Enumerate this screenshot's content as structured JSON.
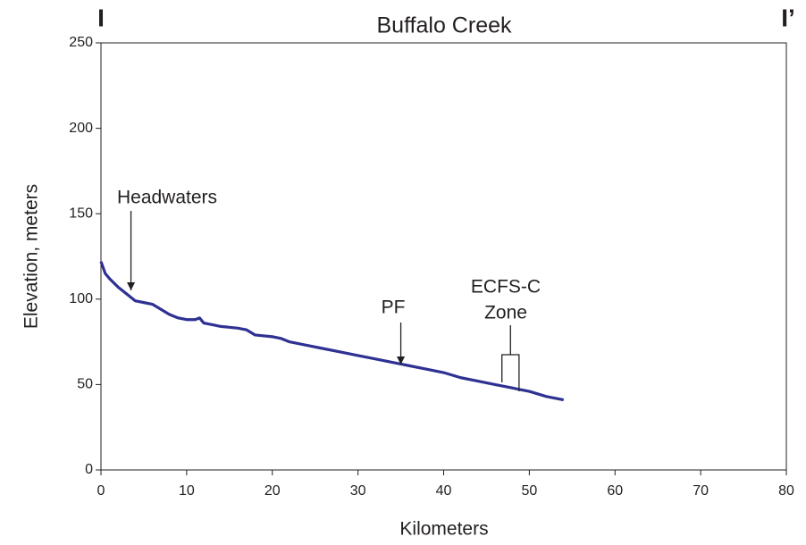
{
  "chart_data": {
    "type": "line",
    "title": "Buffalo Creek",
    "corner_left": "I",
    "corner_right": "I’",
    "xlabel": "Kilometers",
    "ylabel": "Elevation, meters",
    "xlim": [
      0,
      80
    ],
    "ylim": [
      0,
      250
    ],
    "xticks": [
      0,
      10,
      20,
      30,
      40,
      50,
      60,
      70,
      80
    ],
    "yticks": [
      0,
      50,
      100,
      150,
      200,
      250
    ],
    "grid": false,
    "series": [
      {
        "name": "Buffalo Creek",
        "color": "#2e3192",
        "x": [
          0,
          0.5,
          1,
          2,
          3,
          3.5,
          4,
          5,
          6,
          7,
          8,
          9,
          10,
          11,
          11.5,
          12,
          13,
          14,
          16,
          17,
          18,
          20,
          21,
          22,
          24,
          26,
          28,
          30,
          32,
          34,
          35,
          36,
          38,
          40,
          42,
          44,
          46,
          47,
          48,
          49,
          50,
          52,
          54
        ],
        "values": [
          122,
          115,
          112,
          107,
          103,
          101,
          99,
          98,
          97,
          94,
          91,
          89,
          88,
          88,
          89,
          86,
          85,
          84,
          83,
          82,
          79,
          78,
          77,
          75,
          73,
          71,
          69,
          67,
          65,
          63,
          62,
          61,
          59,
          57,
          54,
          52,
          50,
          49,
          48,
          47,
          46,
          43,
          41
        ]
      }
    ],
    "annotations": [
      {
        "text": [
          "Headwaters"
        ],
        "x": 3.5
      },
      {
        "text": [
          "PF"
        ],
        "x": 35
      },
      {
        "text": [
          "ECFS-C",
          "Zone"
        ],
        "x": [
          46.8,
          48.8
        ]
      }
    ]
  }
}
